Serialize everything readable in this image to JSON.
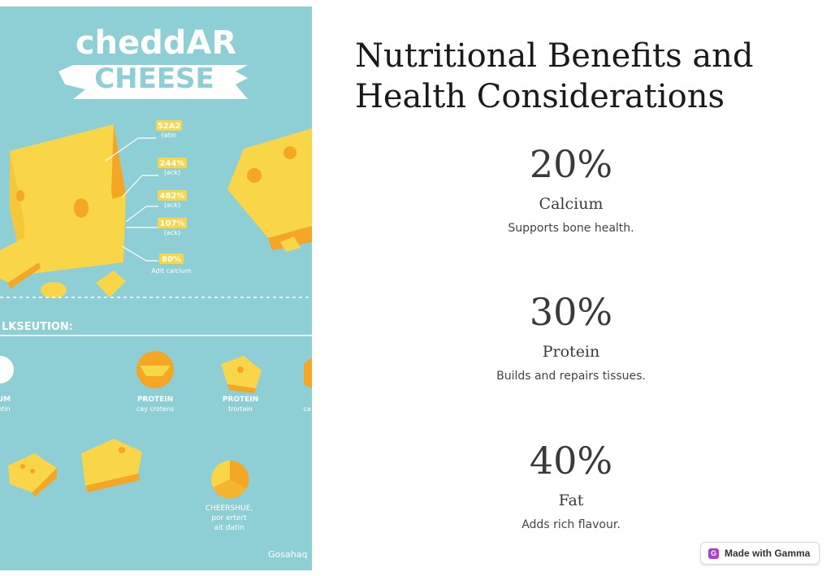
{
  "illustration": {
    "title_line1": "cheddAR",
    "title_line2": "CHEESE",
    "callouts": [
      {
        "value": "52A2",
        "sub": "(atin"
      },
      {
        "value": "244%",
        "sub": "(ack)"
      },
      {
        "value": "482%",
        "sub": "(ack)"
      },
      {
        "value": "107%",
        "sub": "(ack)"
      },
      {
        "value": "80%",
        "sub": "Adit calcium"
      }
    ],
    "section_heading": "LKSEUTION:",
    "icons": [
      {
        "label": "UM",
        "sub": "otin"
      },
      {
        "label": "PROTEIN",
        "sub": "cay crotens"
      },
      {
        "label": "PROTEIN",
        "sub": "trortain"
      },
      {
        "label": "",
        "sub": "ca"
      }
    ],
    "pie_caption": [
      "CHEERSHUE,",
      "por ertert",
      "ait datin"
    ],
    "watermark": "Gosahaq"
  },
  "heading": "Nutritional Benefits and Health Considerations",
  "stats": [
    {
      "value": "20%",
      "label": "Calcium",
      "description": "Supports bone health."
    },
    {
      "value": "30%",
      "label": "Protein",
      "description": "Builds and repairs tissues."
    },
    {
      "value": "40%",
      "label": "Fat",
      "description": "Adds rich flavour."
    }
  ],
  "badge": {
    "label": "Made with Gamma",
    "icon": "gamma-logo-icon"
  },
  "colors": {
    "illustration_bg": "#8ecfd6",
    "cheese": "#f9d548",
    "cheese_shade": "#f5a623"
  }
}
